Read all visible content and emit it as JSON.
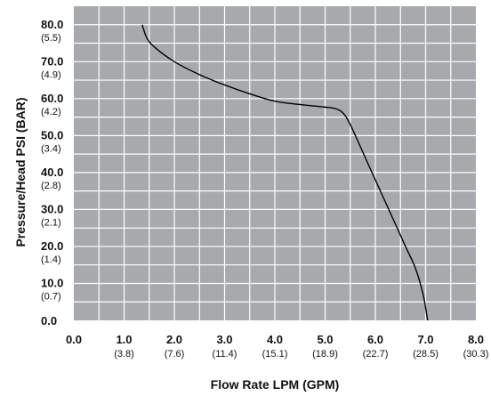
{
  "chart_data": {
    "type": "line",
    "title": "",
    "xlabel": "Flow Rate LPM (GPM)",
    "ylabel": "Pressure/Head PSI (BAR)",
    "xlim": [
      0,
      8
    ],
    "ylim": [
      0,
      85
    ],
    "grid": true,
    "background_color": "#a7a9ac",
    "grid_color": "#ffffff",
    "line_color": "#000000",
    "x_ticks": [
      {
        "value": 0,
        "label": "0.0",
        "sublabel": ""
      },
      {
        "value": 1,
        "label": "1.0",
        "sublabel": "(3.8)"
      },
      {
        "value": 2,
        "label": "2.0",
        "sublabel": "(7.6)"
      },
      {
        "value": 3,
        "label": "3.0",
        "sublabel": "(11.4)"
      },
      {
        "value": 4,
        "label": "4.0",
        "sublabel": "(15.1)"
      },
      {
        "value": 5,
        "label": "5.0",
        "sublabel": "(18.9)"
      },
      {
        "value": 6,
        "label": "6.0",
        "sublabel": "(22.7)"
      },
      {
        "value": 7,
        "label": "7.0",
        "sublabel": "(28.5)"
      },
      {
        "value": 8,
        "label": "8.0",
        "sublabel": "(30.3)"
      }
    ],
    "y_ticks": [
      {
        "value": 80,
        "label": "80.0",
        "sublabel": "(5.5)"
      },
      {
        "value": 70,
        "label": "70.0",
        "sublabel": "(4.9)"
      },
      {
        "value": 60,
        "label": "60.0",
        "sublabel": "(4.2)"
      },
      {
        "value": 50,
        "label": "50.0",
        "sublabel": "(3.4)"
      },
      {
        "value": 40,
        "label": "40.0",
        "sublabel": "(2.8)"
      },
      {
        "value": 30,
        "label": "30.0",
        "sublabel": "(2.1)"
      },
      {
        "value": 20,
        "label": "20.0",
        "sublabel": "(1.4)"
      },
      {
        "value": 10,
        "label": "10.0",
        "sublabel": "(0.7)"
      },
      {
        "value": 0,
        "label": "0.0",
        "sublabel": ""
      }
    ],
    "series": [
      {
        "x": [
          1.36,
          1.45,
          1.6,
          2.0,
          2.5,
          3.0,
          3.5,
          4.0,
          4.5,
          5.0,
          5.2,
          5.35,
          5.5,
          5.8,
          6.0,
          6.3,
          6.6,
          6.8,
          6.95,
          7.04
        ],
        "y": [
          80.0,
          76.5,
          74.0,
          70.0,
          66.5,
          63.7,
          61.3,
          59.3,
          58.4,
          57.7,
          57.3,
          56.2,
          53.0,
          44.0,
          38.0,
          29.0,
          20.0,
          14.0,
          7.0,
          0.0
        ]
      }
    ]
  }
}
